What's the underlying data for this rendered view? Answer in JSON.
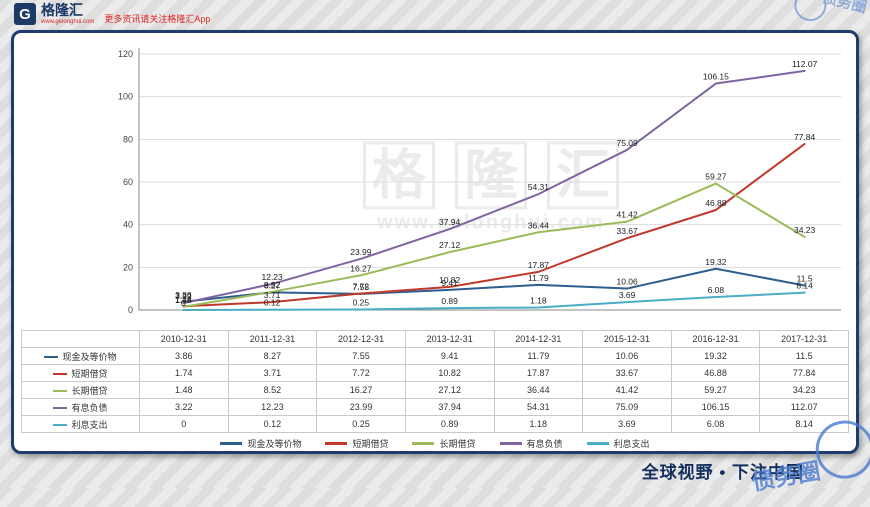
{
  "header": {
    "logo_letter": "G",
    "logo_name": "格隆汇",
    "logo_sub": "www.gelonghui.com",
    "promo": "更多资讯请关注格隆汇App"
  },
  "watermark": {
    "chars": [
      "格",
      "隆",
      "汇"
    ],
    "site": "www.gelonghui.com"
  },
  "stamp": {
    "text": "债务圈"
  },
  "footer": {
    "slogan": "全球视野 • 下注中国"
  },
  "chart_data": {
    "type": "line",
    "categories": [
      "2010-12-31",
      "2011-12-31",
      "2012-12-31",
      "2013-12-31",
      "2014-12-31",
      "2015-12-31",
      "2016-12-31",
      "2017-12-31"
    ],
    "series": [
      {
        "name": "现金及等价物",
        "color": "#2e5e8e",
        "values": [
          3.86,
          8.27,
          7.55,
          9.41,
          11.79,
          10.06,
          19.32,
          11.5
        ]
      },
      {
        "name": "短期借贷",
        "color": "#c0392b",
        "values": [
          1.74,
          3.71,
          7.72,
          10.82,
          17.87,
          33.67,
          46.88,
          77.84
        ]
      },
      {
        "name": "长期借贷",
        "color": "#9bbb59",
        "values": [
          1.48,
          8.52,
          16.27,
          27.12,
          36.44,
          41.42,
          59.27,
          34.23
        ]
      },
      {
        "name": "有息负债",
        "color": "#8064a2",
        "values": [
          3.22,
          12.23,
          23.99,
          37.94,
          54.31,
          75.09,
          106.15,
          112.07
        ]
      },
      {
        "name": "利息支出",
        "color": "#4bacc6",
        "values": [
          0,
          0.12,
          0.25,
          0.89,
          1.18,
          3.69,
          6.08,
          8.14
        ]
      }
    ],
    "title": "",
    "xlabel": "",
    "ylabel": "",
    "ylim": [
      0,
      120
    ],
    "yticks": [
      0,
      20,
      40,
      60,
      80,
      100,
      120
    ],
    "grid": true,
    "data_labels": true,
    "legend_position": "bottom"
  }
}
